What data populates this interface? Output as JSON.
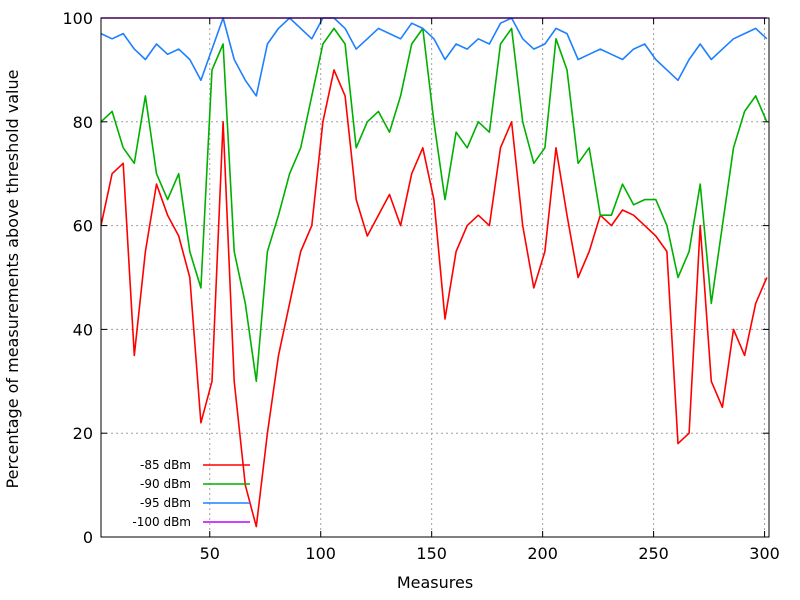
{
  "chart_data": {
    "type": "line",
    "xlabel": "Measures",
    "ylabel": "Percentage of measurements above threshold value",
    "xlim": [
      1,
      302
    ],
    "ylim": [
      0,
      100
    ],
    "xticks": [
      50,
      100,
      150,
      200,
      250,
      300
    ],
    "yticks": [
      0,
      20,
      40,
      60,
      80,
      100
    ],
    "grid": true,
    "legend_position": "bottom-left",
    "x": [
      1,
      6,
      11,
      16,
      21,
      26,
      31,
      36,
      41,
      46,
      51,
      56,
      61,
      66,
      71,
      76,
      81,
      86,
      91,
      96,
      101,
      106,
      111,
      116,
      121,
      126,
      131,
      136,
      141,
      146,
      151,
      156,
      161,
      166,
      171,
      176,
      181,
      186,
      191,
      196,
      201,
      206,
      211,
      216,
      221,
      226,
      231,
      236,
      241,
      246,
      251,
      256,
      261,
      266,
      271,
      276,
      281,
      286,
      291,
      296,
      301
    ],
    "series": [
      {
        "name": "-85 dBm",
        "color": "#ff0000",
        "values": [
          60,
          70,
          72,
          35,
          55,
          68,
          62,
          58,
          50,
          22,
          30,
          80,
          30,
          10,
          2,
          20,
          35,
          45,
          55,
          60,
          80,
          90,
          85,
          65,
          58,
          62,
          66,
          60,
          70,
          75,
          65,
          42,
          55,
          60,
          62,
          60,
          75,
          80,
          60,
          48,
          55,
          75,
          62,
          50,
          55,
          62,
          60,
          63,
          62,
          60,
          58,
          55,
          18,
          20,
          60,
          30,
          25,
          40,
          35,
          45,
          50
        ]
      },
      {
        "name": "-90 dBm",
        "color": "#00b000",
        "values": [
          80,
          82,
          75,
          72,
          85,
          70,
          65,
          70,
          55,
          48,
          90,
          95,
          55,
          45,
          30,
          55,
          62,
          70,
          75,
          85,
          95,
          98,
          95,
          75,
          80,
          82,
          78,
          85,
          95,
          98,
          80,
          65,
          78,
          75,
          80,
          78,
          95,
          98,
          80,
          72,
          75,
          96,
          90,
          72,
          75,
          62,
          62,
          68,
          64,
          65,
          65,
          60,
          50,
          55,
          68,
          45,
          60,
          75,
          82,
          85,
          80
        ]
      },
      {
        "name": "-95 dBm",
        "color": "#1e80ff",
        "values": [
          97,
          96,
          97,
          94,
          92,
          95,
          93,
          94,
          92,
          88,
          94,
          100,
          92,
          88,
          85,
          95,
          98,
          100,
          98,
          96,
          100,
          100,
          98,
          94,
          96,
          98,
          97,
          96,
          99,
          98,
          96,
          92,
          95,
          94,
          96,
          95,
          99,
          100,
          96,
          94,
          95,
          98,
          97,
          92,
          93,
          94,
          93,
          92,
          94,
          95,
          92,
          90,
          88,
          92,
          95,
          92,
          94,
          96,
          97,
          98,
          96
        ]
      },
      {
        "name": "-100 dBm",
        "color": "#c000ff",
        "values": [
          100,
          100,
          100,
          100,
          100,
          100,
          100,
          100,
          100,
          100,
          100,
          100,
          100,
          100,
          100,
          100,
          100,
          100,
          100,
          100,
          100,
          100,
          100,
          100,
          100,
          100,
          100,
          100,
          100,
          100,
          100,
          100,
          100,
          100,
          100,
          100,
          100,
          100,
          100,
          100,
          100,
          100,
          100,
          100,
          100,
          100,
          100,
          100,
          100,
          100,
          100,
          100,
          100,
          100,
          100,
          100,
          100,
          100,
          100,
          100,
          100
        ]
      }
    ]
  }
}
